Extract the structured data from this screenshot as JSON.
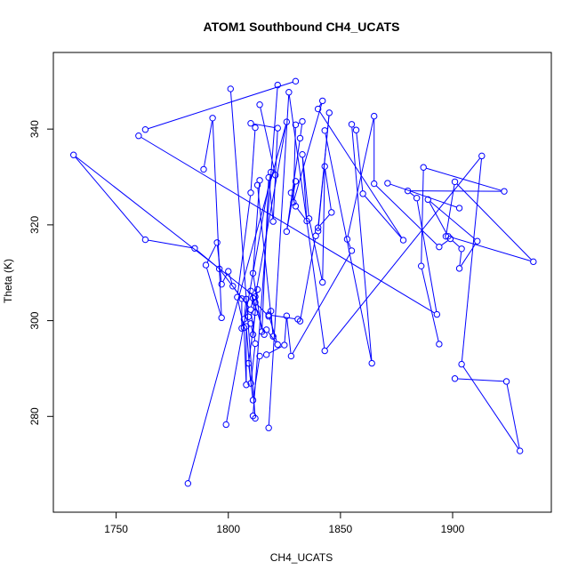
{
  "chart_data": {
    "type": "line",
    "title": "ATOM1 Southbound CH4_UCATS",
    "xlabel": "CH4_UCATS",
    "ylabel": "Theta (K)",
    "xlim": [
      1722,
      1944
    ],
    "ylim": [
      260,
      356
    ],
    "xticks": [
      1750,
      1800,
      1850,
      1900
    ],
    "yticks": [
      280,
      300,
      320,
      340
    ],
    "grid": false,
    "legend": "none",
    "series": [
      {
        "color": "#0000ff",
        "marker": "open-circle",
        "points": [
          [
            1731,
            334.6
          ],
          [
            1763,
            316.9
          ],
          [
            1785,
            315.1
          ],
          [
            1796,
            310.8
          ],
          [
            1763,
            339.9
          ],
          [
            1782,
            266.0
          ],
          [
            1812,
            305.0
          ],
          [
            1830,
            350.0
          ],
          [
            1819,
            331.0
          ],
          [
            1799,
            278.3
          ],
          [
            1822,
            349.2
          ],
          [
            1801,
            348.4
          ],
          [
            1811,
            280.1
          ],
          [
            1812,
            279.6
          ],
          [
            1814,
            345.1
          ],
          [
            1821,
            330.4
          ],
          [
            1818,
            277.6
          ],
          [
            1827,
            347.7
          ],
          [
            1826,
            341.5
          ],
          [
            1843,
            293.7
          ],
          [
            1903,
            323.5
          ],
          [
            1913,
            334.4
          ],
          [
            1904,
            290.9
          ],
          [
            1930,
            272.8
          ],
          [
            1924,
            287.3
          ],
          [
            1901,
            287.9
          ],
          [
            1894,
            295.1
          ],
          [
            1886,
            311.4
          ],
          [
            1887,
            332.0
          ],
          [
            1923,
            327.0
          ],
          [
            1880,
            327.1
          ],
          [
            1871,
            328.7
          ],
          [
            1884,
            325.6
          ],
          [
            1893,
            301.3
          ],
          [
            1760,
            338.6
          ],
          [
            1843,
            339.7
          ],
          [
            1864,
            291.1
          ],
          [
            1855,
            341.0
          ],
          [
            1857,
            339.8
          ],
          [
            1860,
            326.5
          ],
          [
            1878,
            316.8
          ],
          [
            1840,
            344.2
          ],
          [
            1842,
            345.9
          ],
          [
            1829,
            324.7
          ],
          [
            1830,
            340.9
          ],
          [
            1833,
            341.6
          ],
          [
            1832,
            338.1
          ],
          [
            1826,
            318.6
          ],
          [
            1830,
            329.1
          ],
          [
            1828,
            326.7
          ],
          [
            1830,
            323.9
          ],
          [
            1835,
            320.8
          ],
          [
            1833,
            334.7
          ],
          [
            1836,
            321.3
          ],
          [
            1842,
            308.0
          ],
          [
            1843,
            332.2
          ],
          [
            1846,
            322.6
          ],
          [
            1840,
            319.4
          ],
          [
            1845,
            343.4
          ],
          [
            1840,
            318.7
          ],
          [
            1839,
            317.7
          ],
          [
            1832,
            299.9
          ],
          [
            1831,
            300.3
          ],
          [
            1818,
            301.2
          ],
          [
            1822,
            295.0
          ],
          [
            1817,
            298.1
          ],
          [
            1816,
            297.1
          ],
          [
            1810,
            306.2
          ],
          [
            1812,
            301.7
          ],
          [
            1809,
            291.1
          ],
          [
            1811,
            283.4
          ],
          [
            1814,
            292.6
          ],
          [
            1817,
            292.9
          ],
          [
            1825,
            294.9
          ],
          [
            1826,
            301.0
          ],
          [
            1828,
            292.6
          ],
          [
            1855,
            314.6
          ],
          [
            1853,
            317.0
          ],
          [
            1865,
            342.7
          ],
          [
            1865,
            328.6
          ],
          [
            1894,
            315.4
          ],
          [
            1899,
            317.1
          ],
          [
            1904,
            315.0
          ],
          [
            1903,
            310.9
          ],
          [
            1911,
            316.6
          ],
          [
            1889,
            325.3
          ],
          [
            1898,
            317.6
          ],
          [
            1936,
            312.3
          ],
          [
            1901,
            329.0
          ],
          [
            1897,
            317.6
          ],
          [
            1789,
            331.6
          ],
          [
            1793,
            342.3
          ],
          [
            1797,
            300.6
          ],
          [
            1790,
            311.6
          ],
          [
            1795,
            316.3
          ],
          [
            1797,
            307.6
          ],
          [
            1800,
            310.3
          ],
          [
            1802,
            307.2
          ],
          [
            1806,
            304.6
          ],
          [
            1806,
            298.4
          ],
          [
            1807,
            300.3
          ],
          [
            1808,
            304.5
          ],
          [
            1809,
            300.8
          ],
          [
            1810,
            299.4
          ],
          [
            1811,
            297.1
          ],
          [
            1813,
            306.5
          ],
          [
            1812,
            303.8
          ],
          [
            1818,
            300.9
          ],
          [
            1819,
            302.0
          ],
          [
            1820,
            296.7
          ],
          [
            1813,
            328.3
          ],
          [
            1814,
            329.3
          ],
          [
            1811,
            309.9
          ],
          [
            1815,
            297.7
          ],
          [
            1818,
            329.9
          ],
          [
            1820,
            320.7
          ],
          [
            1822,
            340.2
          ],
          [
            1810,
            341.2
          ],
          [
            1812,
            340.3
          ],
          [
            1810,
            326.7
          ],
          [
            1804,
            304.9
          ],
          [
            1807,
            298.5
          ],
          [
            1808,
            286.6
          ],
          [
            1808,
            298.8
          ],
          [
            1810,
            286.9
          ],
          [
            1812,
            295.2
          ],
          [
            1810,
            302.3
          ],
          [
            1811,
            304.7
          ]
        ],
        "path_order": [
          [
            0,
            1
          ],
          [
            1,
            2
          ],
          [
            2,
            3
          ],
          [
            0,
            6
          ],
          [
            4,
            7
          ],
          [
            5,
            18
          ],
          [
            6,
            18
          ],
          [
            8,
            9
          ],
          [
            10,
            12
          ],
          [
            11,
            13
          ],
          [
            14,
            15
          ],
          [
            16,
            17
          ],
          [
            17,
            19
          ],
          [
            19,
            21
          ],
          [
            20,
            31
          ],
          [
            21,
            22
          ],
          [
            22,
            23
          ],
          [
            23,
            24
          ],
          [
            24,
            25
          ],
          [
            26,
            27
          ],
          [
            27,
            28
          ],
          [
            28,
            29
          ],
          [
            29,
            30
          ],
          [
            30,
            32
          ],
          [
            32,
            33
          ],
          [
            33,
            34
          ],
          [
            35,
            36
          ],
          [
            36,
            37
          ],
          [
            37,
            38
          ],
          [
            38,
            39
          ],
          [
            39,
            40
          ],
          [
            40,
            41
          ],
          [
            41,
            42
          ],
          [
            42,
            43
          ],
          [
            43,
            44
          ],
          [
            44,
            45
          ],
          [
            45,
            46
          ],
          [
            46,
            47
          ],
          [
            47,
            48
          ],
          [
            48,
            49
          ],
          [
            49,
            50
          ],
          [
            50,
            51
          ],
          [
            51,
            52
          ],
          [
            52,
            53
          ],
          [
            53,
            54
          ],
          [
            54,
            55
          ],
          [
            55,
            56
          ],
          [
            56,
            57
          ],
          [
            57,
            58
          ],
          [
            58,
            59
          ],
          [
            59,
            60
          ],
          [
            60,
            61
          ],
          [
            61,
            62
          ],
          [
            62,
            63
          ],
          [
            63,
            64
          ],
          [
            64,
            65
          ],
          [
            65,
            66
          ],
          [
            66,
            67
          ],
          [
            67,
            68
          ],
          [
            68,
            69
          ],
          [
            69,
            70
          ],
          [
            70,
            71
          ],
          [
            71,
            72
          ],
          [
            72,
            73
          ],
          [
            73,
            74
          ],
          [
            74,
            75
          ],
          [
            75,
            76
          ],
          [
            76,
            77
          ],
          [
            77,
            78
          ],
          [
            78,
            79
          ],
          [
            79,
            80
          ],
          [
            80,
            81
          ],
          [
            81,
            82
          ],
          [
            82,
            83
          ],
          [
            83,
            84
          ],
          [
            84,
            85
          ],
          [
            85,
            86
          ],
          [
            86,
            87
          ],
          [
            87,
            88
          ],
          [
            88,
            89
          ],
          [
            90,
            91
          ],
          [
            91,
            92
          ],
          [
            92,
            93
          ],
          [
            93,
            94
          ],
          [
            94,
            95
          ],
          [
            95,
            96
          ],
          [
            96,
            97
          ],
          [
            97,
            98
          ],
          [
            98,
            99
          ],
          [
            99,
            100
          ],
          [
            100,
            101
          ],
          [
            101,
            102
          ],
          [
            102,
            103
          ],
          [
            103,
            104
          ],
          [
            104,
            105
          ],
          [
            105,
            106
          ],
          [
            106,
            107
          ],
          [
            107,
            108
          ],
          [
            108,
            109
          ],
          [
            109,
            110
          ],
          [
            110,
            111
          ],
          [
            111,
            112
          ],
          [
            112,
            113
          ],
          [
            113,
            114
          ],
          [
            114,
            115
          ],
          [
            115,
            116
          ],
          [
            116,
            117
          ],
          [
            117,
            118
          ],
          [
            118,
            119
          ],
          [
            119,
            120
          ],
          [
            120,
            121
          ],
          [
            121,
            122
          ],
          [
            122,
            123
          ],
          [
            123,
            124
          ],
          [
            124,
            125
          ],
          [
            125,
            126
          ],
          [
            126,
            127
          ],
          [
            3,
            126
          ]
        ]
      }
    ]
  }
}
